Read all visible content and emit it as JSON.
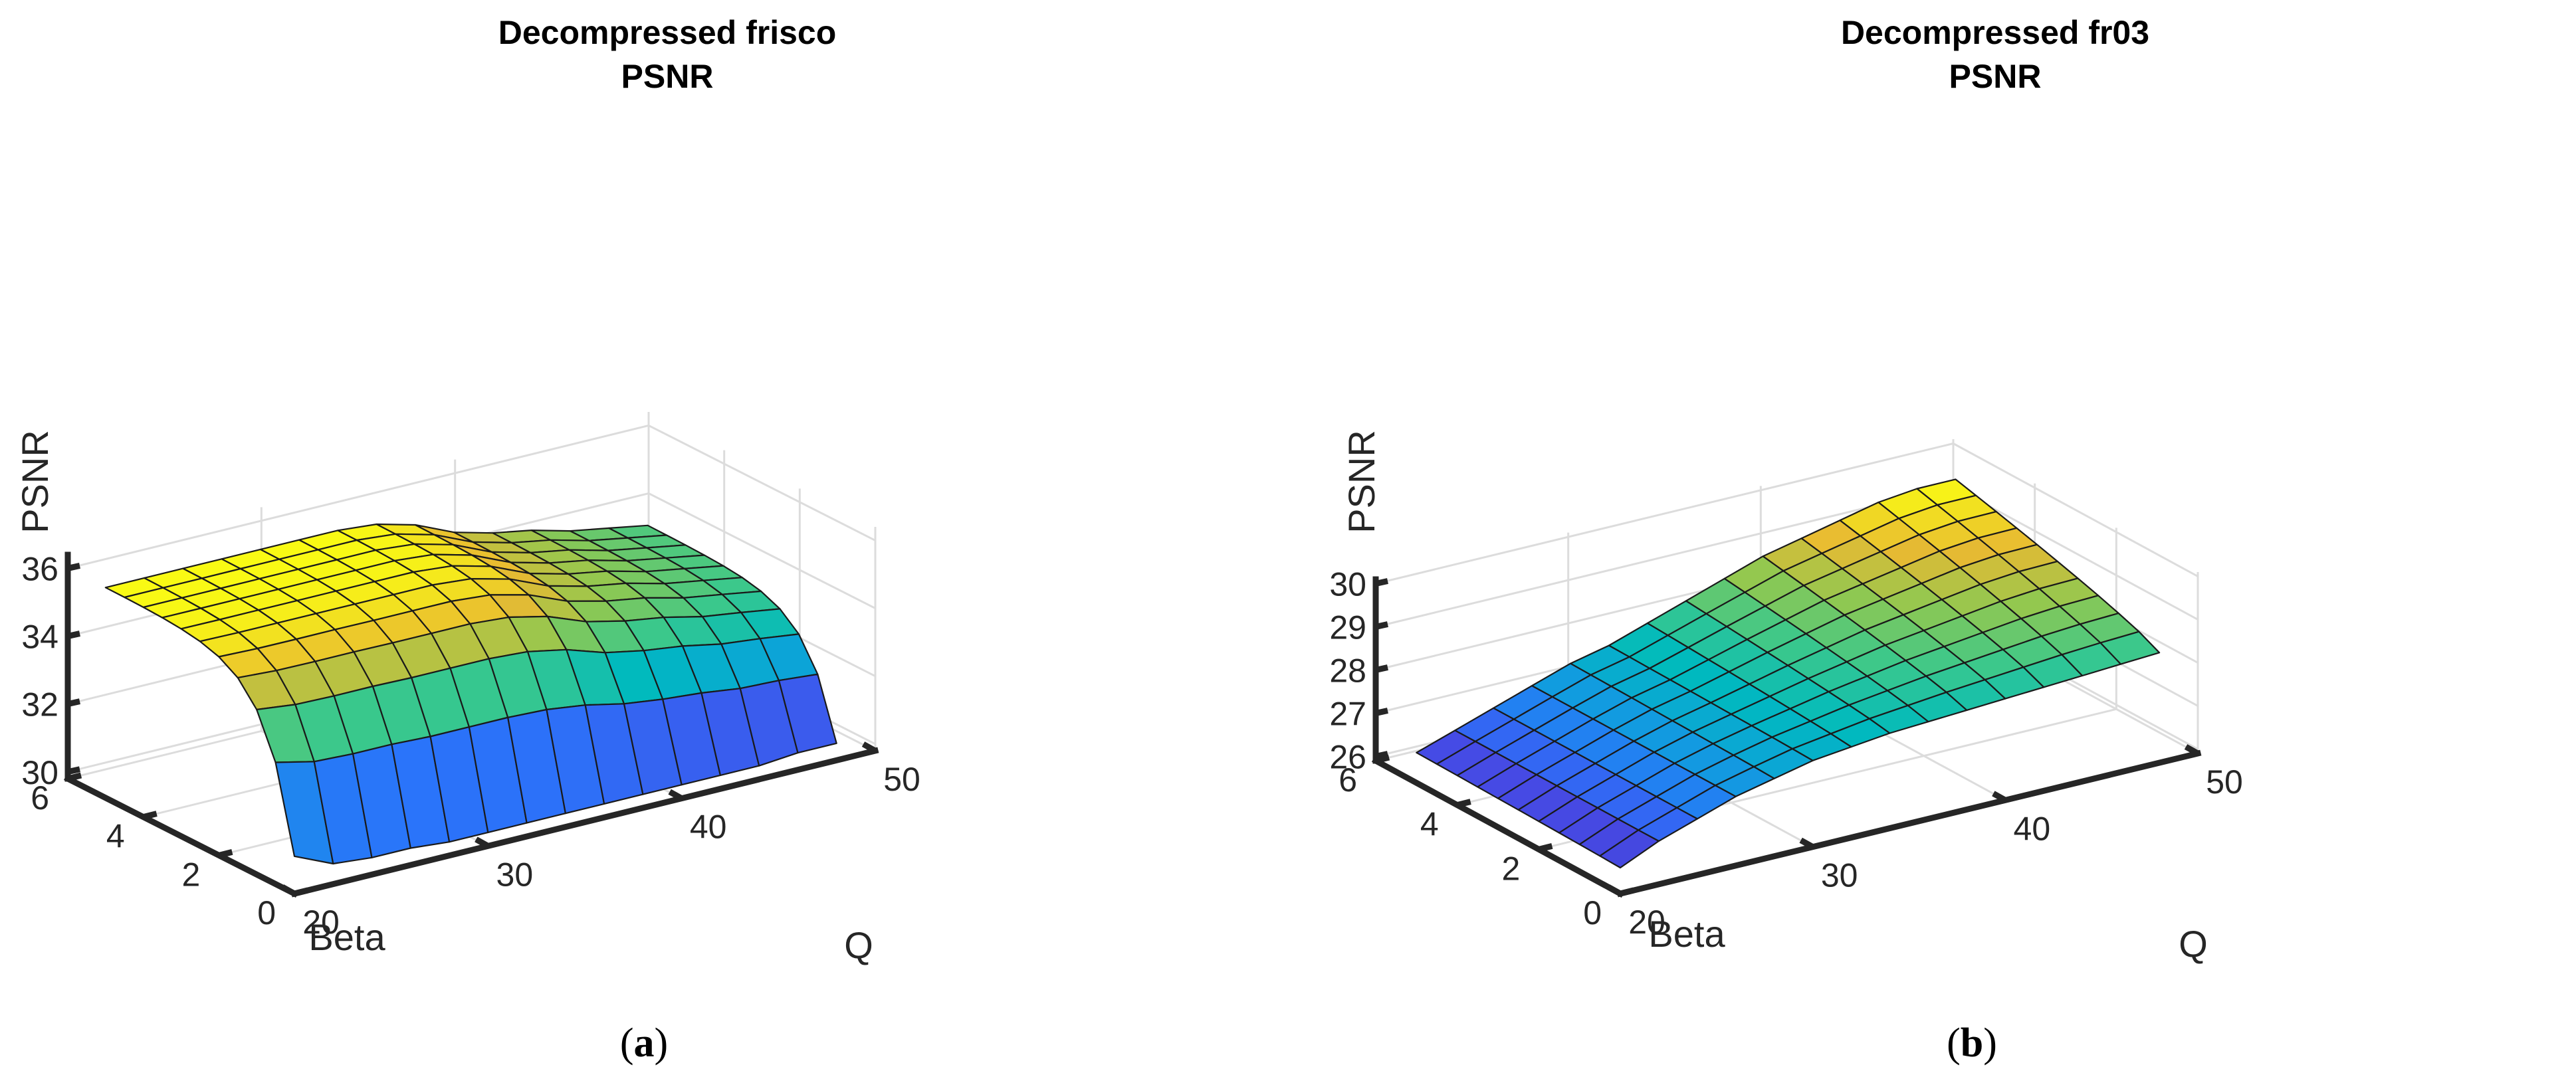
{
  "chart_data": [
    {
      "type": "surface",
      "panel": "a",
      "caption_letter": "a",
      "title_lines": [
        "Decompressed frisco",
        "PSNR"
      ],
      "xlabel": "Q",
      "ylabel": "Beta",
      "zlabel": "PSNR",
      "xlim": [
        20,
        50
      ],
      "ylim": [
        0,
        6
      ],
      "zlim": [
        29.8,
        36.4
      ],
      "x_ticks": [
        "20",
        "30",
        "40",
        "50"
      ],
      "y_ticks": [
        "0",
        "2",
        "4",
        "6"
      ],
      "z_ticks": [
        "30",
        "32",
        "34",
        "36"
      ],
      "colormap": "parula",
      "color_range": [
        30.2,
        36.0
      ],
      "q_grid": [
        20,
        22,
        24,
        26,
        28,
        30,
        32,
        34,
        36,
        38,
        40,
        42,
        44,
        46,
        48
      ],
      "beta_grid": [
        0.0,
        0.5,
        1.0,
        1.5,
        2.0,
        2.5,
        3.0,
        3.5,
        4.0,
        4.5,
        5.0
      ],
      "psnr_at_beta0": [
        30.9,
        30.4,
        30.3,
        30.3,
        30.2,
        30.2,
        30.2,
        30.2,
        30.2,
        30.2,
        30.2,
        30.2,
        30.2,
        30.3,
        30.3
      ],
      "psnr_at_beta5": [
        36.0,
        36.0,
        36.0,
        36.0,
        36.0,
        36.0,
        36.0,
        35.9,
        35.6,
        35.1,
        34.8,
        34.6,
        34.3,
        34.1,
        33.9
      ],
      "beta_shape": "rises steeply from Beta 0 to Beta ~1.5, then saturates"
    },
    {
      "type": "surface",
      "panel": "b",
      "caption_letter": "b",
      "title_lines": [
        "Decompressed fr03",
        "PSNR"
      ],
      "xlabel": "Q",
      "ylabel": "Beta",
      "zlabel": "PSNR",
      "xlim": [
        20,
        50
      ],
      "ylim": [
        0,
        6
      ],
      "zlim": [
        25.9,
        30.1
      ],
      "x_ticks": [
        "20",
        "30",
        "40",
        "50"
      ],
      "y_ticks": [
        "0",
        "2",
        "4",
        "6"
      ],
      "z_ticks": [
        "26",
        "27",
        "28",
        "29",
        "30"
      ],
      "colormap": "parula",
      "color_range": [
        26.3,
        29.9
      ],
      "q_grid": [
        20,
        22,
        24,
        26,
        28,
        30,
        32,
        34,
        36,
        38,
        40,
        42,
        44,
        46,
        48
      ],
      "beta_grid": [
        0.0,
        0.5,
        1.0,
        1.5,
        2.0,
        2.5,
        3.0,
        3.5,
        4.0,
        4.5,
        5.0
      ],
      "psnr_at_beta0": [
        26.5,
        26.9,
        27.2,
        27.5,
        27.7,
        27.9,
        28.0,
        28.1,
        28.15,
        28.2,
        28.25,
        28.3,
        28.35,
        28.4,
        28.45
      ],
      "psnr_at_beta5": [
        26.6,
        26.9,
        27.2,
        27.5,
        27.8,
        28.0,
        28.3,
        28.6,
        28.9,
        29.2,
        29.4,
        29.6,
        29.8,
        29.9,
        29.9
      ],
      "beta_shape": "rises gently with Beta, stronger at high Q"
    }
  ]
}
